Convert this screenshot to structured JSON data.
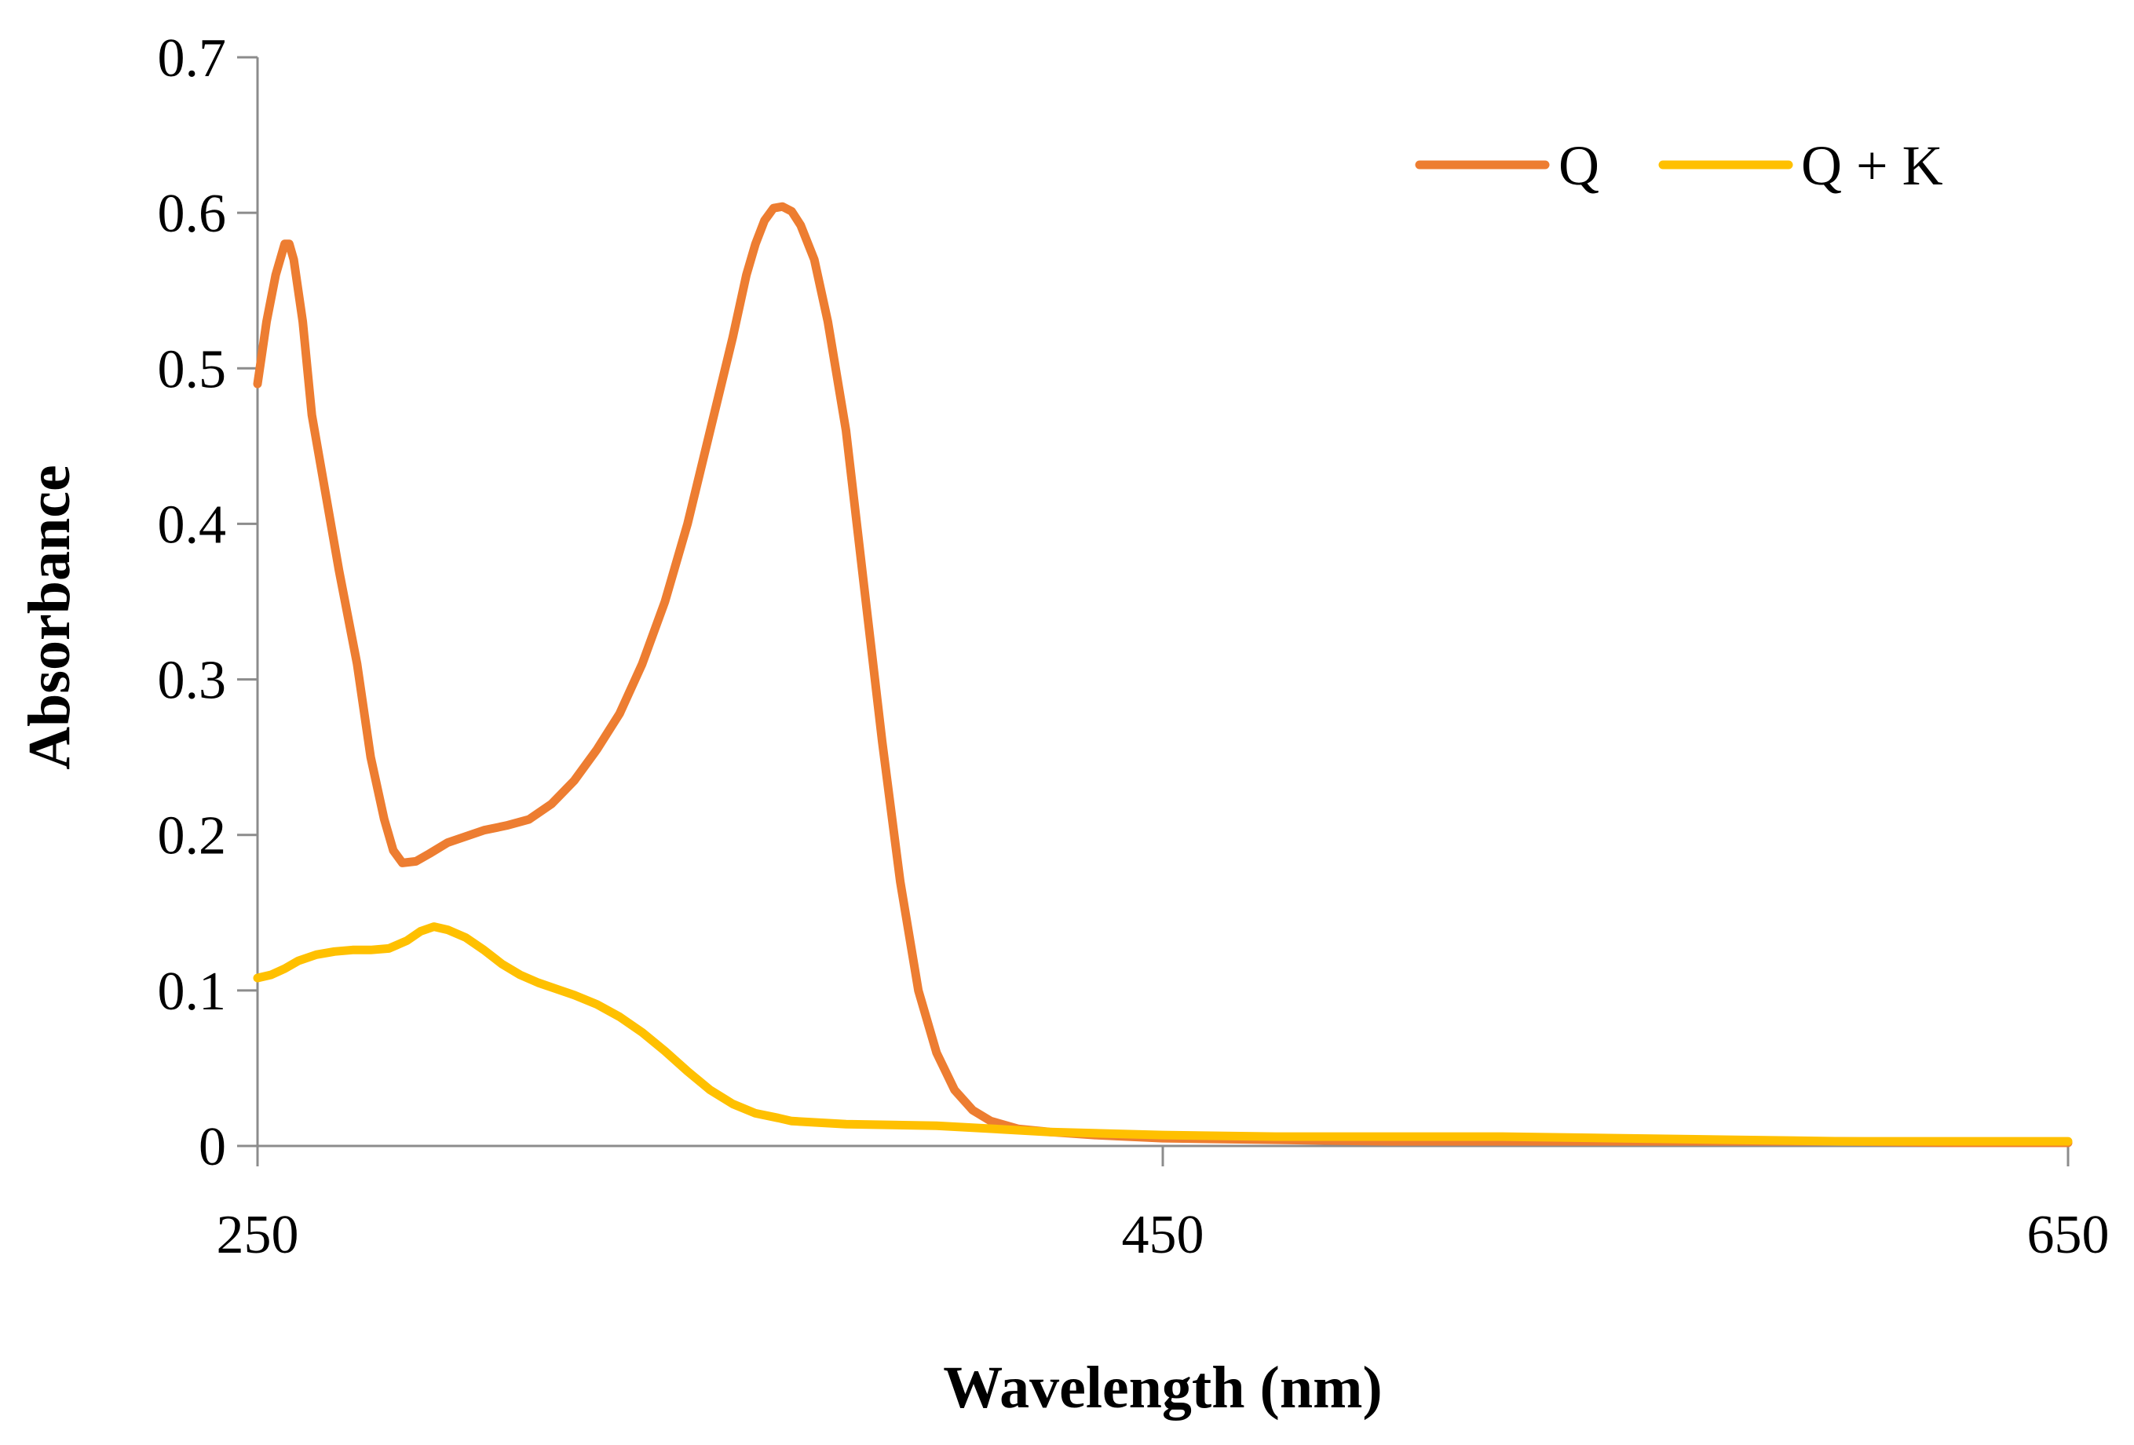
{
  "chart_data": {
    "type": "line",
    "title": "",
    "xlabel": "Wavelength (nm)",
    "ylabel": "Absorbance",
    "xlim": [
      250,
      650
    ],
    "ylim": [
      0,
      0.7
    ],
    "x_ticks": [
      250,
      450,
      650
    ],
    "x_tick_labels": [
      "250",
      "450",
      "650"
    ],
    "y_ticks": [
      0,
      0.1,
      0.2,
      0.3,
      0.4,
      0.5,
      0.6,
      0.7
    ],
    "y_tick_labels": [
      "0",
      "0.1",
      "0.2",
      "0.3",
      "0.4",
      "0.5",
      "0.6",
      "0.7"
    ],
    "grid": false,
    "legend_position": "top-right",
    "series": [
      {
        "name": "Q",
        "color": "#ED7D31",
        "points": [
          [
            250,
            0.49
          ],
          [
            251,
            0.51
          ],
          [
            252,
            0.53
          ],
          [
            254,
            0.56
          ],
          [
            256,
            0.58
          ],
          [
            257,
            0.58
          ],
          [
            258,
            0.57
          ],
          [
            260,
            0.53
          ],
          [
            262,
            0.47
          ],
          [
            265,
            0.42
          ],
          [
            268,
            0.37
          ],
          [
            272,
            0.31
          ],
          [
            275,
            0.25
          ],
          [
            278,
            0.21
          ],
          [
            280,
            0.19
          ],
          [
            282,
            0.182
          ],
          [
            285,
            0.183
          ],
          [
            288,
            0.188
          ],
          [
            292,
            0.195
          ],
          [
            296,
            0.199
          ],
          [
            300,
            0.203
          ],
          [
            305,
            0.206
          ],
          [
            310,
            0.21
          ],
          [
            315,
            0.22
          ],
          [
            320,
            0.235
          ],
          [
            325,
            0.255
          ],
          [
            330,
            0.278
          ],
          [
            335,
            0.31
          ],
          [
            340,
            0.35
          ],
          [
            345,
            0.4
          ],
          [
            350,
            0.46
          ],
          [
            355,
            0.52
          ],
          [
            358,
            0.56
          ],
          [
            360,
            0.58
          ],
          [
            362,
            0.595
          ],
          [
            364,
            0.603
          ],
          [
            366,
            0.604
          ],
          [
            368,
            0.601
          ],
          [
            370,
            0.592
          ],
          [
            373,
            0.57
          ],
          [
            376,
            0.53
          ],
          [
            380,
            0.46
          ],
          [
            384,
            0.36
          ],
          [
            388,
            0.26
          ],
          [
            392,
            0.17
          ],
          [
            396,
            0.1
          ],
          [
            400,
            0.06
          ],
          [
            404,
            0.036
          ],
          [
            408,
            0.023
          ],
          [
            412,
            0.016
          ],
          [
            418,
            0.011
          ],
          [
            425,
            0.009
          ],
          [
            435,
            0.007
          ],
          [
            450,
            0.005
          ],
          [
            475,
            0.004
          ],
          [
            500,
            0.003
          ],
          [
            525,
            0.003
          ],
          [
            550,
            0.003
          ],
          [
            575,
            0.003
          ],
          [
            600,
            0.003
          ],
          [
            625,
            0.002
          ],
          [
            650,
            0.002
          ]
        ]
      },
      {
        "name": "Q + K",
        "color": "#FFC000",
        "points": [
          [
            250,
            0.108
          ],
          [
            253,
            0.11
          ],
          [
            256,
            0.114
          ],
          [
            259,
            0.119
          ],
          [
            263,
            0.123
          ],
          [
            267,
            0.125
          ],
          [
            271,
            0.126
          ],
          [
            275,
            0.126
          ],
          [
            279,
            0.127
          ],
          [
            283,
            0.132
          ],
          [
            286,
            0.138
          ],
          [
            289,
            0.141
          ],
          [
            292,
            0.139
          ],
          [
            296,
            0.134
          ],
          [
            300,
            0.126
          ],
          [
            304,
            0.117
          ],
          [
            308,
            0.11
          ],
          [
            312,
            0.105
          ],
          [
            316,
            0.101
          ],
          [
            320,
            0.097
          ],
          [
            325,
            0.091
          ],
          [
            330,
            0.083
          ],
          [
            335,
            0.073
          ],
          [
            340,
            0.061
          ],
          [
            345,
            0.048
          ],
          [
            350,
            0.036
          ],
          [
            355,
            0.027
          ],
          [
            360,
            0.021
          ],
          [
            365,
            0.018
          ],
          [
            368,
            0.016
          ],
          [
            380,
            0.014
          ],
          [
            400,
            0.013
          ],
          [
            425,
            0.009
          ],
          [
            450,
            0.007
          ],
          [
            475,
            0.006
          ],
          [
            500,
            0.006
          ],
          [
            525,
            0.006
          ],
          [
            550,
            0.005
          ],
          [
            575,
            0.004
          ],
          [
            600,
            0.003
          ],
          [
            625,
            0.003
          ],
          [
            650,
            0.003
          ]
        ]
      }
    ]
  }
}
